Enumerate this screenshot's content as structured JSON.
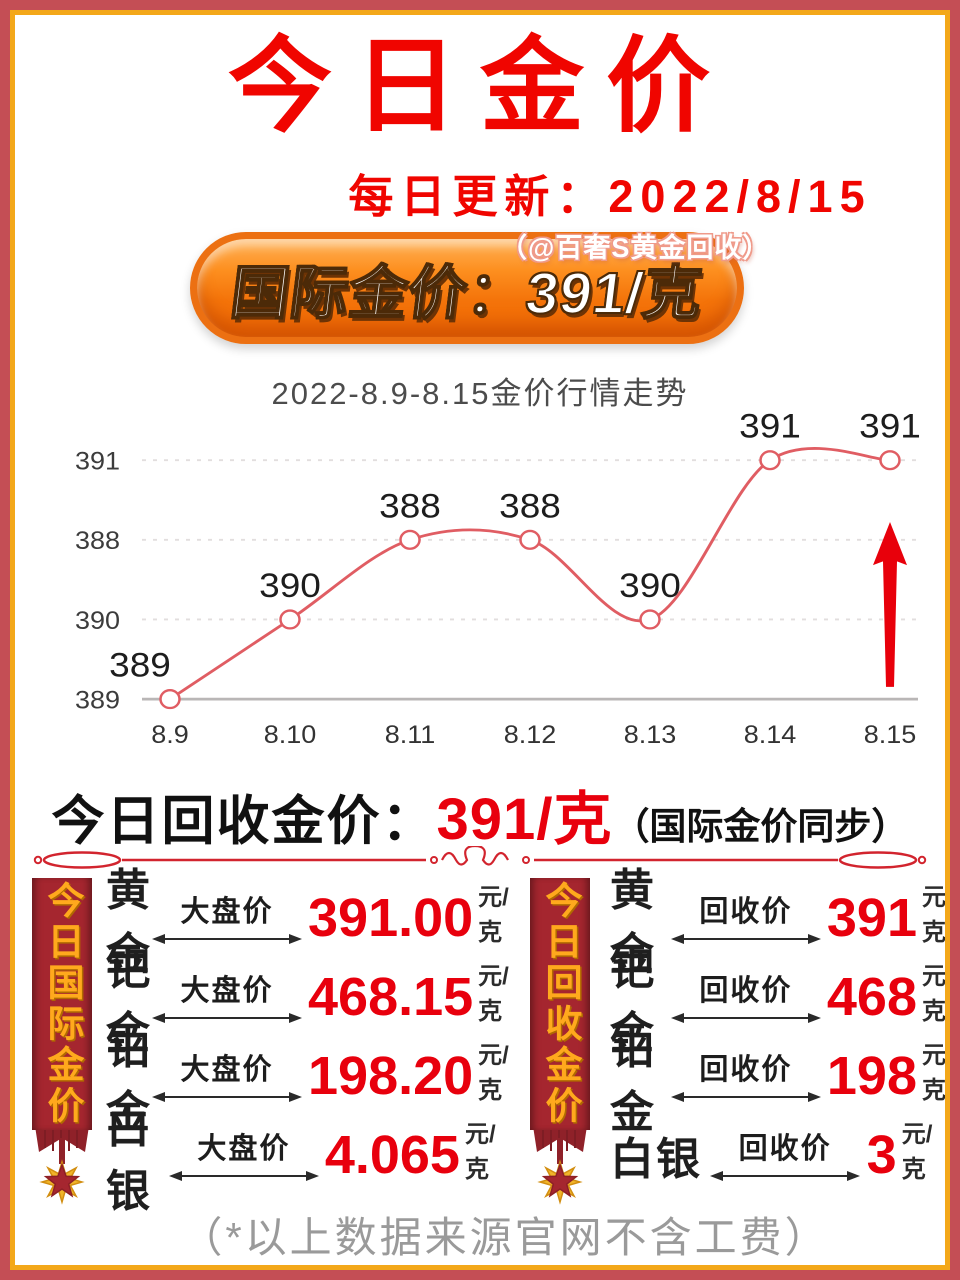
{
  "page": {
    "title": "今日金价",
    "subtitle_label": "每日更新：",
    "subtitle_date": "2022/8/15",
    "watermark": "（@百奢S黄金回收）",
    "banner": "国际金价：391/克",
    "footnote": "（*以上数据来源官网不含工费）"
  },
  "recycle_line": {
    "label": "今日回收金价：",
    "price": "391/克",
    "note": "（国际金价同步）"
  },
  "chart_data": {
    "type": "line",
    "title": "2022-8.9-8.15金价行情走势",
    "categories": [
      "8.9",
      "8.10",
      "8.11",
      "8.12",
      "8.13",
      "8.14",
      "8.15"
    ],
    "values": [
      389,
      390,
      388,
      388,
      390,
      391,
      391
    ],
    "point_labels": [
      "389",
      "390",
      "388",
      "388",
      "390",
      "391",
      "391"
    ],
    "y_axis_rows_top_to_bottom": [
      "391",
      "388",
      "390",
      "389"
    ],
    "xlabel": "",
    "ylabel": "",
    "grid": "dashed horizontal gridlines, solid bottom axis",
    "legend": "none",
    "line_color": "#e05d63",
    "marker": "open-circle",
    "trend_arrow": "up-arrow at 8.15, color #e8000b"
  },
  "left_table": {
    "ribbon": "今日国际金价",
    "rows": [
      {
        "metal": "黄金",
        "label": "大盘价",
        "price": "391.00",
        "unit": "元/克"
      },
      {
        "metal": "钯金",
        "label": "大盘价",
        "price": "468.15",
        "unit": "元/克"
      },
      {
        "metal": "铂金",
        "label": "大盘价",
        "price": "198.20",
        "unit": "元/克"
      },
      {
        "metal": "白银",
        "label": "大盘价",
        "price": "4.065",
        "unit": "元/克"
      }
    ]
  },
  "right_table": {
    "ribbon": "今日回收金价",
    "rows": [
      {
        "metal": "黄金",
        "label": "回收价",
        "price": "391",
        "unit": "元/克"
      },
      {
        "metal": "钯金",
        "label": "回收价",
        "price": "468",
        "unit": "元/克"
      },
      {
        "metal": "铂金",
        "label": "回收价",
        "price": "198",
        "unit": "元/克"
      },
      {
        "metal": "白银",
        "label": "回收价",
        "price": "3",
        "unit": "元/克"
      }
    ]
  },
  "icons": {
    "medal": "star-medal-icon",
    "double_arrow": "double-arrow-icon",
    "trend": "up-arrow-icon",
    "divider": "ornamental-divider"
  },
  "colors": {
    "frame_outer": "#c44e55",
    "frame_gold": "#f3a81a",
    "title_red": "#f00500",
    "banner_orange": "#f57303",
    "price_red": "#e8000d",
    "ribbon_red": "#a5262f",
    "ribbon_text_gold": "#ffa91d",
    "chart_line": "#e05d63",
    "divider_red": "#d2242e"
  }
}
